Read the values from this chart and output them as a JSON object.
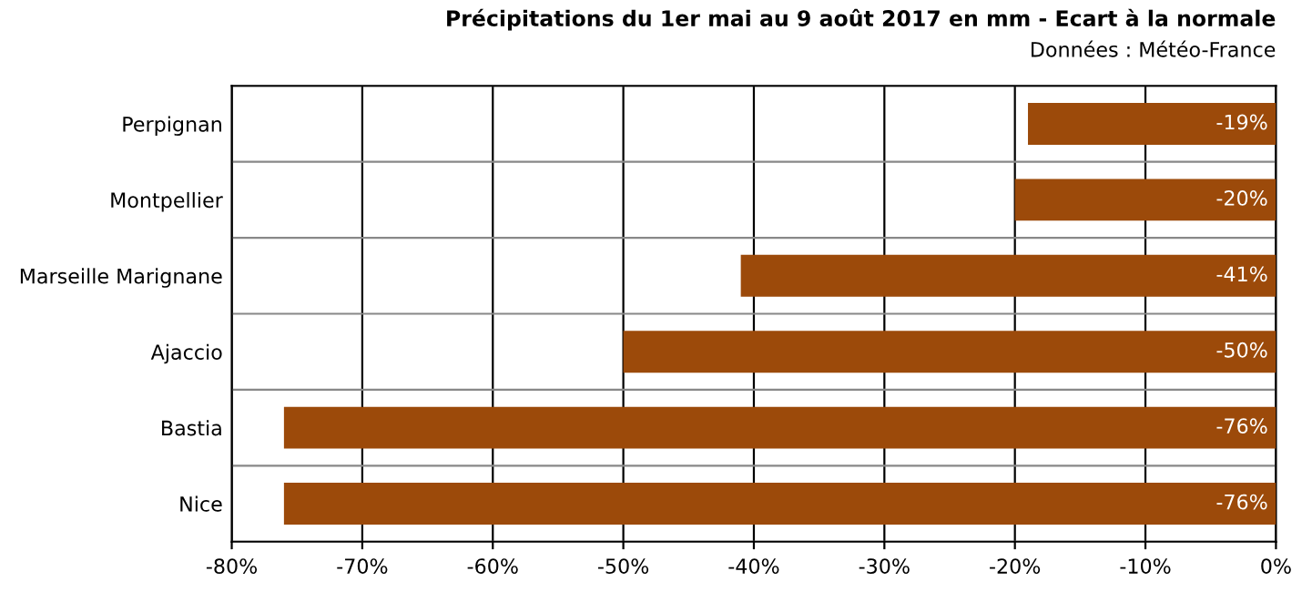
{
  "chart_data": {
    "type": "bar",
    "orientation": "horizontal",
    "title": "Précipitations du 1er mai au 9 août 2017 en mm - Ecart à la normale",
    "subtitle": "Données : Météo-France",
    "categories": [
      "Perpignan",
      "Montpellier",
      "Marseille Marignane",
      "Ajaccio",
      "Bastia",
      "Nice"
    ],
    "values": [
      -19,
      -20,
      -41,
      -50,
      -76,
      -76
    ],
    "value_labels": [
      "-19%",
      "-20%",
      "-41%",
      "-50%",
      "-76%",
      "-76%"
    ],
    "color": "#9c4a0a",
    "xlim": [
      -80,
      0
    ],
    "xticks": [
      {
        "value": -80,
        "label": "-80%"
      },
      {
        "value": -70,
        "label": "-70%"
      },
      {
        "value": -60,
        "label": "-60%"
      },
      {
        "value": -50,
        "label": "-50%"
      },
      {
        "value": -40,
        "label": "-40%"
      },
      {
        "value": -30,
        "label": "-30%"
      },
      {
        "value": -20,
        "label": "-20%"
      },
      {
        "value": -10,
        "label": "-10%"
      },
      {
        "value": 0,
        "label": "0%"
      }
    ],
    "grid": true,
    "legend": false
  }
}
